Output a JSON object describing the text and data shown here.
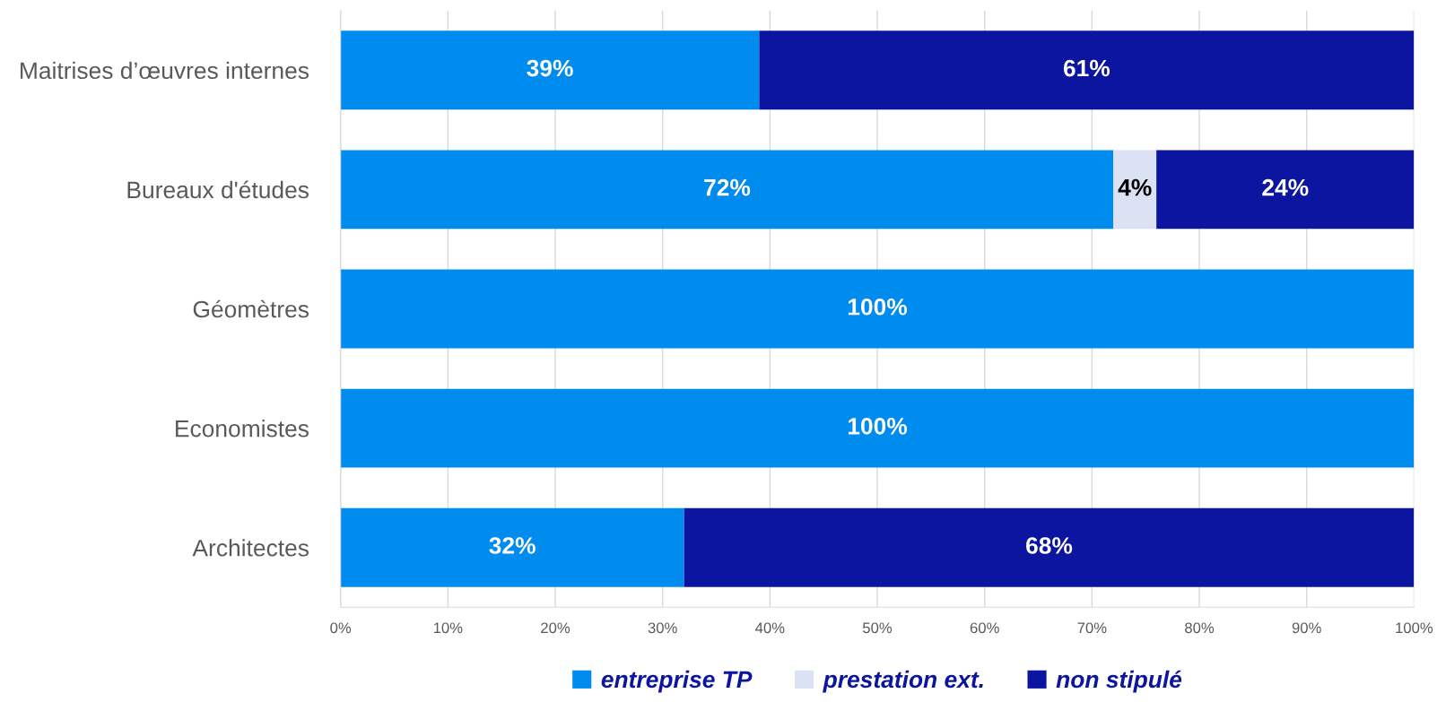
{
  "chart_data": {
    "type": "bar",
    "orientation": "horizontal",
    "stacked": true,
    "categories": [
      "Maitrises d’œuvres internes",
      "Bureaux d'études",
      "Géomètres",
      "Economistes",
      "Architectes"
    ],
    "series": [
      {
        "name": "entreprise TP",
        "color": "#008bef",
        "values": [
          39,
          72,
          100,
          100,
          32
        ],
        "value_labels": [
          "39%",
          "72%",
          "100%",
          "100%",
          "32%"
        ]
      },
      {
        "name": "prestation ext.",
        "color": "#dbe2f3",
        "values": [
          0,
          4,
          0,
          0,
          0
        ],
        "value_labels": [
          null,
          "4%",
          null,
          null,
          null
        ]
      },
      {
        "name": "non stipulé",
        "color": "#0b15a0",
        "values": [
          61,
          24,
          0,
          0,
          68
        ],
        "value_labels": [
          "61%",
          "24%",
          null,
          null,
          "68%"
        ]
      }
    ],
    "xlim": [
      0,
      100
    ],
    "xticks": [
      {
        "value": 0,
        "label": "0%"
      },
      {
        "value": 10,
        "label": "10%"
      },
      {
        "value": 20,
        "label": "20%"
      },
      {
        "value": 30,
        "label": "30%"
      },
      {
        "value": 40,
        "label": "40%"
      },
      {
        "value": 50,
        "label": "50%"
      },
      {
        "value": 60,
        "label": "60%"
      },
      {
        "value": 70,
        "label": "70%"
      },
      {
        "value": 80,
        "label": "80%"
      },
      {
        "value": 90,
        "label": "90%"
      },
      {
        "value": 100,
        "label": "100%"
      }
    ],
    "grid": "x",
    "legend": "bottom"
  }
}
